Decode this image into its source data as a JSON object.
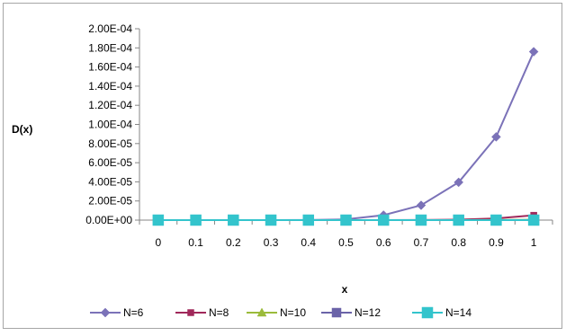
{
  "chart_data": {
    "type": "line",
    "title": "",
    "xlabel": "x",
    "ylabel": "D(x)",
    "ylim": [
      0,
      0.0002
    ],
    "y_ticks": [
      "0.00E+00",
      "2.00E-05",
      "4.00E-05",
      "6.00E-05",
      "8.00E-05",
      "1.00E-04",
      "1.20E-04",
      "1.40E-04",
      "1.60E-04",
      "1.80E-04",
      "2.00E-04"
    ],
    "categories": [
      "0",
      "0.1",
      "0.2",
      "0.3",
      "0.4",
      "0.5",
      "0.6",
      "0.7",
      "0.8",
      "0.9",
      "1"
    ],
    "grid": false,
    "legend_position": "bottom",
    "series": [
      {
        "name": "N=6",
        "color": "#7B72B8",
        "marker": "diamond",
        "values": [
          0,
          0,
          0,
          0,
          1e-07,
          8e-07,
          5.2e-06,
          1.55e-05,
          3.95e-05,
          8.7e-05,
          0.000176
        ]
      },
      {
        "name": "N=8",
        "color": "#A0285A",
        "marker": "square",
        "values": [
          0,
          0,
          0,
          0,
          0,
          0,
          0,
          1e-07,
          5e-07,
          1.8e-06,
          5e-06
        ]
      },
      {
        "name": "N=10",
        "color": "#9BBB3B",
        "marker": "triangle",
        "values": [
          0,
          0,
          0,
          0,
          0,
          0,
          0,
          0,
          0,
          1e-07,
          3e-07
        ]
      },
      {
        "name": "N=12",
        "color": "#6A63A8",
        "marker": "square",
        "values": [
          0,
          0,
          0,
          0,
          0,
          0,
          0,
          0,
          0,
          0,
          1e-07
        ]
      },
      {
        "name": "N=14",
        "color": "#33C4CC",
        "marker": "square",
        "values": [
          0,
          0,
          0,
          0,
          0,
          0,
          0,
          0,
          0,
          0,
          0
        ]
      }
    ]
  }
}
